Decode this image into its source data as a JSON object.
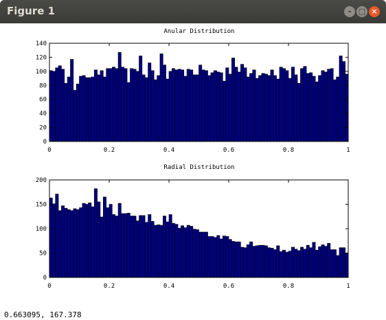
{
  "window": {
    "title": "Figure 1",
    "status_text": "0.663095,  167.378"
  },
  "colors": {
    "bar_fill": "#000080",
    "bar_stroke": "#000000",
    "titlebar": "#3c3c3c",
    "close_button": "#e8592b"
  },
  "chart_data": [
    {
      "type": "bar",
      "title": "Anular Distribution",
      "xlabel": "",
      "ylabel": "",
      "xlim": [
        0,
        1
      ],
      "ylim": [
        0,
        140
      ],
      "xticks": [
        "0",
        "0.2",
        "0.4",
        "0.6",
        "0.8",
        "1"
      ],
      "yticks": [
        "0",
        "20",
        "40",
        "60",
        "80",
        "100",
        "120",
        "140"
      ],
      "bin_width": 0.01,
      "values": [
        101,
        100,
        105,
        108,
        103,
        83,
        92,
        117,
        73,
        82,
        93,
        94,
        91,
        91,
        92,
        102,
        95,
        101,
        92,
        104,
        104,
        106,
        104,
        127,
        106,
        104,
        84,
        104,
        103,
        100,
        122,
        95,
        91,
        112,
        101,
        88,
        94,
        125,
        109,
        89,
        100,
        104,
        102,
        103,
        102,
        93,
        103,
        102,
        95,
        95,
        109,
        102,
        101,
        94,
        98,
        101,
        99,
        98,
        86,
        105,
        96,
        119,
        106,
        99,
        110,
        105,
        92,
        97,
        102,
        90,
        94,
        97,
        96,
        94,
        102,
        94,
        89,
        106,
        104,
        101,
        90,
        106,
        95,
        83,
        104,
        107,
        97,
        98,
        93,
        85,
        94,
        101,
        99,
        103,
        104,
        88,
        92,
        122,
        114,
        96,
        122,
        105,
        110,
        97,
        95
      ]
    },
    {
      "type": "bar",
      "title": "Radial Distribution",
      "xlabel": "",
      "ylabel": "",
      "xlim": [
        0,
        1
      ],
      "ylim": [
        0,
        200
      ],
      "xticks": [
        "0",
        "0.2",
        "0.4",
        "0.6",
        "0.8",
        "1"
      ],
      "yticks": [
        "0",
        "50",
        "100",
        "150",
        "200"
      ],
      "bin_width": 0.01,
      "values": [
        163,
        151,
        171,
        137,
        147,
        142,
        139,
        137,
        141,
        139,
        143,
        152,
        150,
        153,
        145,
        182,
        155,
        124,
        165,
        143,
        150,
        129,
        126,
        152,
        131,
        131,
        132,
        126,
        126,
        116,
        127,
        127,
        113,
        129,
        115,
        107,
        108,
        107,
        126,
        114,
        129,
        111,
        109,
        101,
        106,
        102,
        107,
        105,
        99,
        98,
        93,
        93,
        93,
        84,
        84,
        82,
        86,
        79,
        85,
        84,
        78,
        74,
        73,
        73,
        62,
        61,
        67,
        73,
        64,
        65,
        66,
        66,
        65,
        61,
        60,
        57,
        65,
        53,
        56,
        52,
        54,
        62,
        58,
        55,
        62,
        58,
        66,
        61,
        72,
        56,
        63,
        67,
        64,
        70,
        57,
        57,
        45,
        61,
        61,
        50,
        62,
        54,
        51,
        46,
        42
      ]
    }
  ]
}
